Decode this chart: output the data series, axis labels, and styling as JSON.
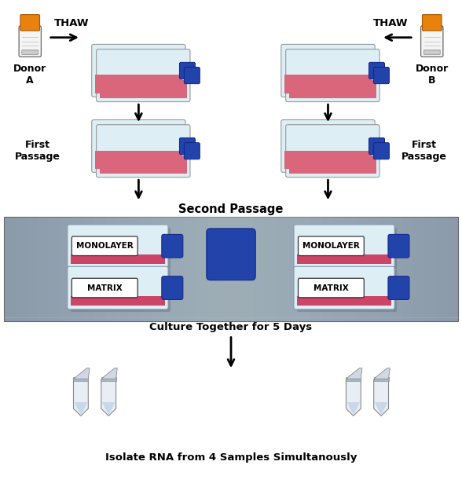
{
  "bg_color": "#ffffff",
  "labels": {
    "thaw_left": "THAW",
    "thaw_right": "THAW",
    "donor_a": "Donor\nA",
    "donor_b": "Donor\nB",
    "first_passage_left": "First\nPassage",
    "first_passage_right": "First\nPassage",
    "second_passage": "Second Passage",
    "culture": "Culture Together for 5 Days",
    "isolate": "Isolate RNA from 4 Samples Simultanously"
  },
  "monolayer_label": "MONOLAYER",
  "matrix_label": "MATRIX",
  "figsize": [
    5.88,
    6.2
  ],
  "dpi": 100
}
